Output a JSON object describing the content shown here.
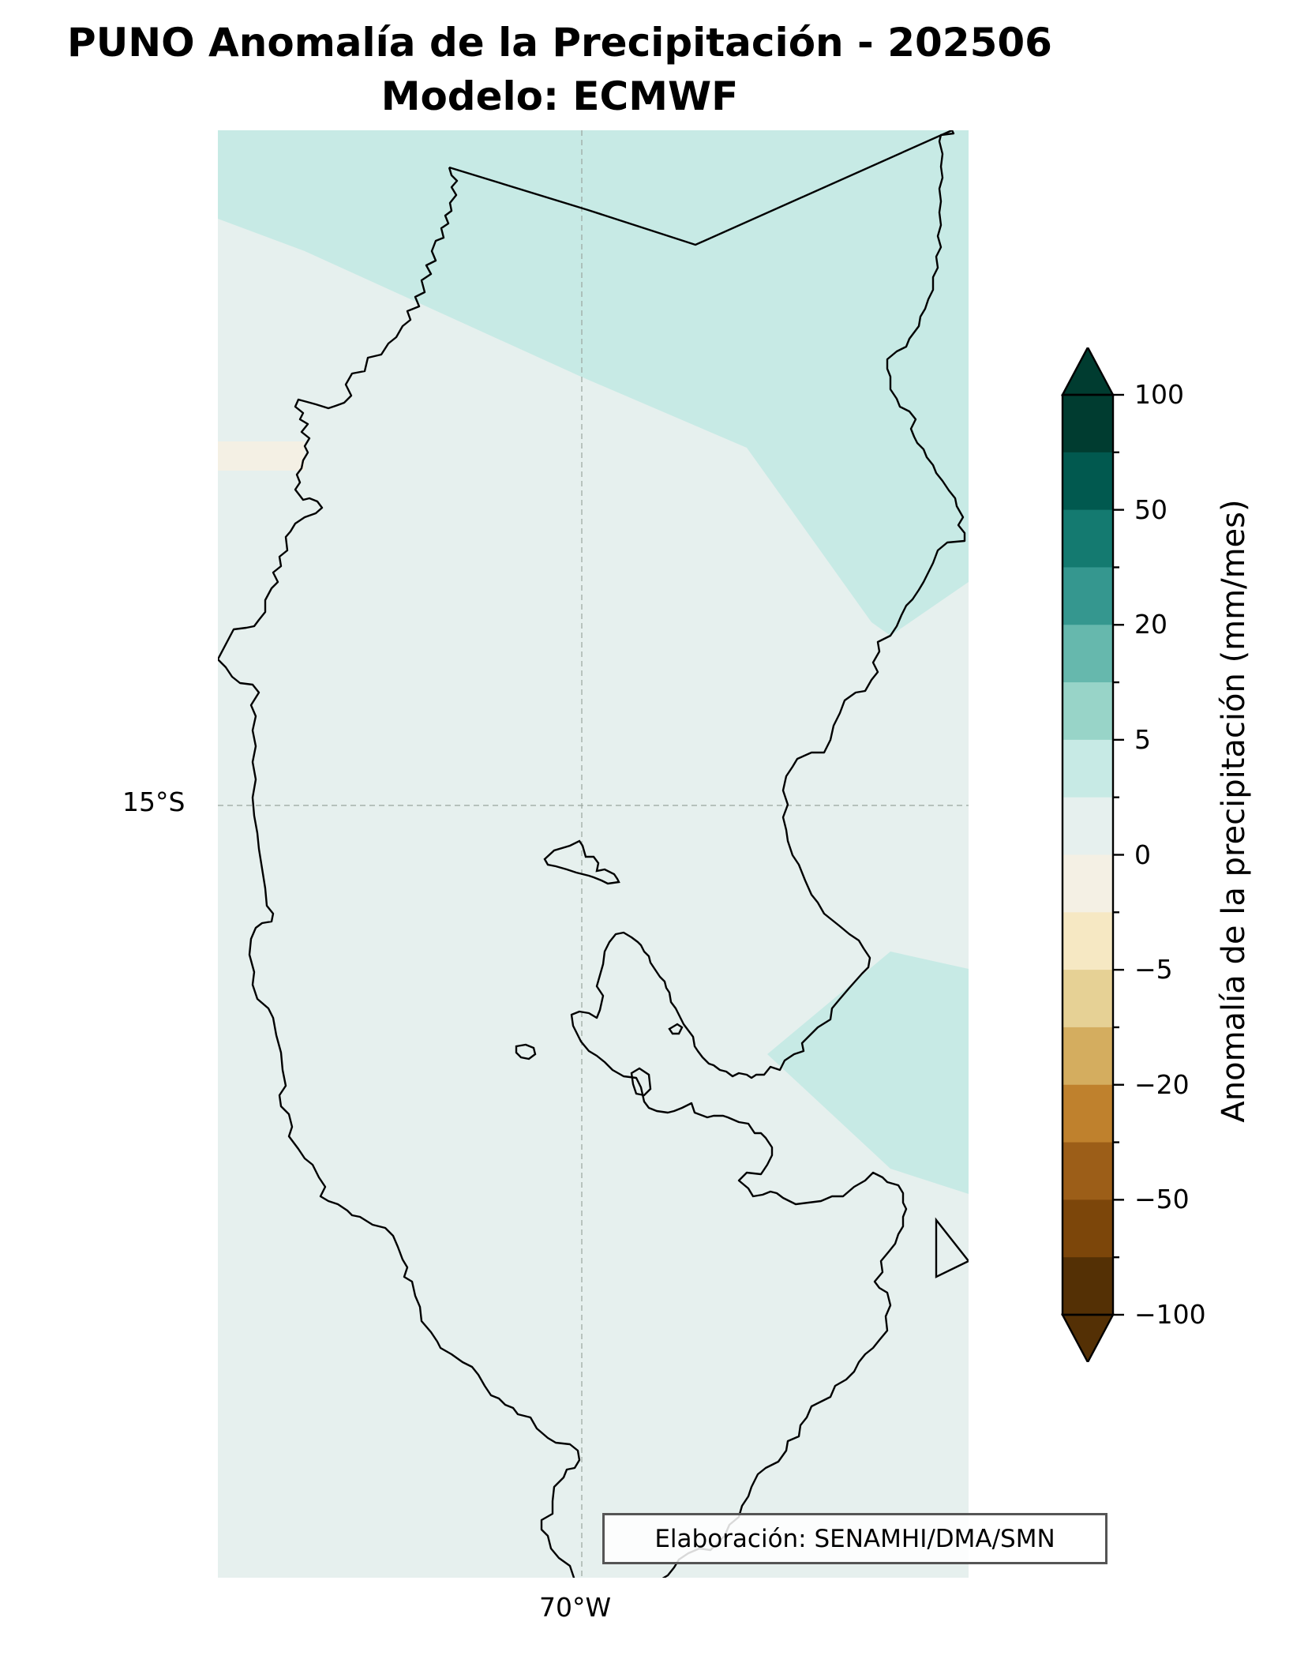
{
  "title": {
    "line1": "PUNO Anomalía de la Precipitación - 202506",
    "line2": "Modelo: ECMWF"
  },
  "axes": {
    "lat_label": "15°S",
    "lon_label": "70°W",
    "grid": true
  },
  "colorbar": {
    "label": "Anomalía de la precipitación (mm/mes)",
    "ticks": [
      "100",
      "50",
      "20",
      "5",
      "0",
      "−5",
      "−20",
      "−50",
      "−100"
    ],
    "levels_top_to_bottom": [
      100,
      75,
      50,
      30,
      20,
      10,
      5,
      2.5,
      0,
      -2.5,
      -5,
      -10,
      -20,
      -30,
      -50,
      -75,
      -100
    ],
    "colors_top_to_bottom": [
      "#003c30",
      "#01594f",
      "#147a70",
      "#35978f",
      "#66b8ad",
      "#98d4c8",
      "#c7eae5",
      "#e6f0ee",
      "#f4f0e4",
      "#f6e8c3",
      "#e6d195",
      "#d4ad5f",
      "#bf812d",
      "#9c5e18",
      "#7c460a",
      "#543005"
    ],
    "extend": "both"
  },
  "map_fill": {
    "background": "#e6f0ee",
    "positive_zone": "#c7eae5",
    "negative_zone": "#f4f0e4",
    "outline": "#000000"
  },
  "credit": "Elaboración: SENAMHI/DMA/SMN"
}
